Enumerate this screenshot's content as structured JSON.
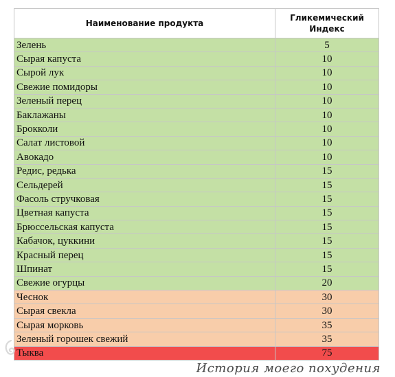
{
  "table": {
    "headers": {
      "product": "Наименование продукта",
      "gi_line1": "Гликемический",
      "gi_line2": "Индекс"
    },
    "rows": [
      {
        "name": "Зелень",
        "gi": "5",
        "level": "low"
      },
      {
        "name": "Сырая капуста",
        "gi": "10",
        "level": "low"
      },
      {
        "name": "Сырой лук",
        "gi": "10",
        "level": "low"
      },
      {
        "name": "Свежие помидоры",
        "gi": "10",
        "level": "low"
      },
      {
        "name": "Зеленый перец",
        "gi": "10",
        "level": "low"
      },
      {
        "name": "Баклажаны",
        "gi": "10",
        "level": "low"
      },
      {
        "name": "Брокколи",
        "gi": "10",
        "level": "low"
      },
      {
        "name": "Салат листовой",
        "gi": "10",
        "level": "low"
      },
      {
        "name": "Авокадо",
        "gi": "10",
        "level": "low"
      },
      {
        "name": "Редис, редька",
        "gi": "15",
        "level": "low"
      },
      {
        "name": "Сельдерей",
        "gi": "15",
        "level": "low"
      },
      {
        "name": "Фасоль стручковая",
        "gi": "15",
        "level": "low"
      },
      {
        "name": "Цветная капуста",
        "gi": "15",
        "level": "low"
      },
      {
        "name": "Брюссельская капуста",
        "gi": "15",
        "level": "low"
      },
      {
        "name": "Кабачок, цуккини",
        "gi": "15",
        "level": "low"
      },
      {
        "name": "Красный перец",
        "gi": "15",
        "level": "low"
      },
      {
        "name": "Шпинат",
        "gi": "15",
        "level": "low"
      },
      {
        "name": "Свежие огурцы",
        "gi": "20",
        "level": "low"
      },
      {
        "name": "Чеснок",
        "gi": "30",
        "level": "mid"
      },
      {
        "name": "Сырая свекла",
        "gi": "30",
        "level": "mid"
      },
      {
        "name": "Сырая морковь",
        "gi": "35",
        "level": "mid"
      },
      {
        "name": "Зеленый горошек свежий",
        "gi": "35",
        "level": "mid"
      },
      {
        "name": "Тыква",
        "gi": "75",
        "level": "high"
      }
    ]
  },
  "colors": {
    "low": "#c4e0a5",
    "mid": "#f8cdaa",
    "high": "#f24c4c"
  },
  "watermark": {
    "text": "История моего похудения",
    "logo_icon": "swirl-logo-icon"
  }
}
